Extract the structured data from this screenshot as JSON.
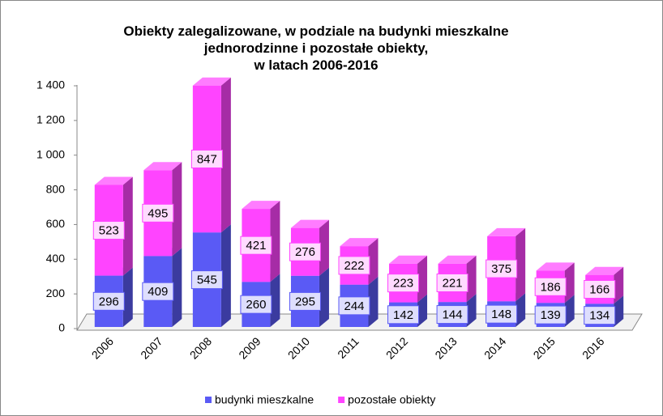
{
  "chart_data": {
    "type": "bar3d_stacked",
    "title": "Obiekty zalegalizowane, w podziale na budynki mieszkalne\njednorodzinne i pozostałe obiekty,\nw latach 2006-2016",
    "categories": [
      "2006",
      "2007",
      "2008",
      "2009",
      "2010",
      "2011",
      "2012",
      "2013",
      "2014",
      "2015",
      "2016"
    ],
    "series": [
      {
        "name": "budynki mieszkalne",
        "color": "#5a5af5",
        "values": [
          296,
          409,
          545,
          260,
          295,
          244,
          142,
          144,
          148,
          139,
          134
        ]
      },
      {
        "name": "pozostałe obiekty",
        "color": "#ff44ff",
        "values": [
          523,
          495,
          847,
          421,
          276,
          222,
          223,
          221,
          375,
          186,
          166
        ]
      }
    ],
    "ylim": [
      0,
      1400
    ],
    "yticks": [
      0,
      200,
      400,
      600,
      800,
      {
        "value": 1000,
        "label": "1 000"
      },
      {
        "value": 1200,
        "label": "1 200"
      },
      {
        "value": 1400,
        "label": "1 400"
      }
    ],
    "grid": false,
    "legend": "bottom"
  }
}
